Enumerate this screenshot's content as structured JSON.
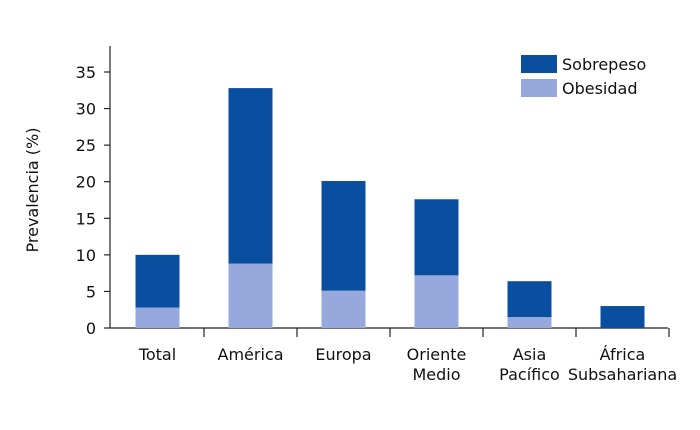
{
  "chart_data": {
    "type": "bar",
    "stacked": true,
    "categories": [
      [
        "Total"
      ],
      [
        "América"
      ],
      [
        "Europa"
      ],
      [
        "Oriente",
        "Medio"
      ],
      [
        "Asia",
        "Pacífico"
      ],
      [
        "África",
        "Subsahariana"
      ]
    ],
    "series": [
      {
        "name": "Obesidad",
        "values": [
          2.8,
          8.8,
          5.1,
          7.2,
          1.5,
          0
        ],
        "color": "#97a8dc"
      },
      {
        "name": "Sobrepeso",
        "values": [
          7.2,
          24.0,
          15.0,
          10.4,
          4.9,
          3.0
        ],
        "color": "#0a4ea0"
      }
    ],
    "legend_order": [
      "Sobrepeso",
      "Obesidad"
    ],
    "legend_position": "top-right",
    "ylabel": "Prevalencia (%)",
    "xlabel": "",
    "ylim": [
      0,
      35
    ],
    "yticks": [
      0,
      5,
      10,
      15,
      20,
      25,
      30,
      35
    ],
    "grid": false
  }
}
